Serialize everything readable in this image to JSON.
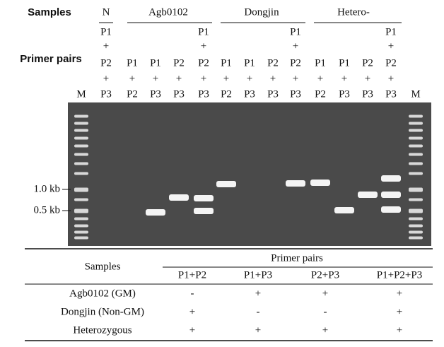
{
  "header": {
    "samples_label": "Samples",
    "primer_label": "Primer pairs",
    "groups": [
      "N",
      "Agb0102",
      "Dongjin",
      "Hetero-"
    ],
    "marker": "M",
    "lanes": [
      [
        "P1",
        "+",
        "P2",
        "+",
        "P3"
      ],
      [
        "P1",
        "+",
        "P2"
      ],
      [
        "P1",
        "+",
        "P3"
      ],
      [
        "P2",
        "+",
        "P3"
      ],
      [
        "P1",
        "+",
        "P2",
        "+",
        "P3"
      ],
      [
        "P1",
        "+",
        "P2"
      ],
      [
        "P1",
        "+",
        "P3"
      ],
      [
        "P2",
        "+",
        "P3"
      ],
      [
        "P1",
        "+",
        "P2",
        "+",
        "P3"
      ],
      [
        "P1",
        "+",
        "P2"
      ],
      [
        "P1",
        "+",
        "P3"
      ],
      [
        "P2",
        "+",
        "P3"
      ],
      [
        "P1",
        "+",
        "P2",
        "+",
        "P3"
      ]
    ]
  },
  "gel": {
    "size_labels": [
      "1.0 kb",
      "0.5 kb"
    ]
  },
  "table": {
    "samples_header": "Samples",
    "primer_header": "Primer pairs",
    "columns": [
      "P1+P2",
      "P1+P3",
      "P2+P3",
      "P1+P2+P3"
    ],
    "rows": [
      [
        "Agb0102 (GM)",
        "-",
        "+",
        "+",
        "+"
      ],
      [
        "Dongjin (Non-GM)",
        "+",
        "-",
        "-",
        "+"
      ],
      [
        "Heterozygous",
        "+",
        "+",
        "+",
        "+"
      ]
    ]
  }
}
